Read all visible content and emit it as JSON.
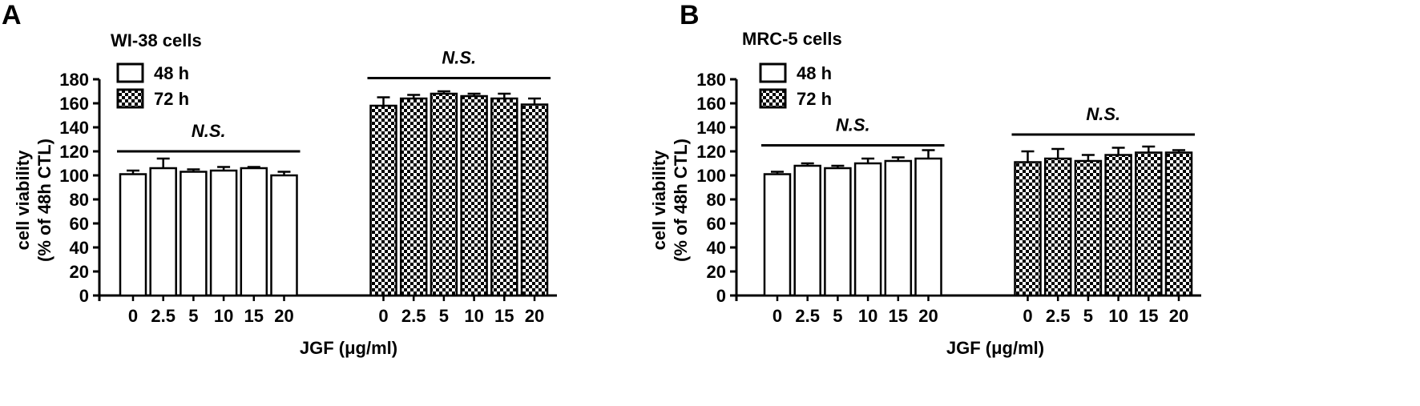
{
  "theme": {
    "ink": "#000000",
    "bar_48h_fill": "#ffffff",
    "bar_72h_pattern": "checkerboard"
  },
  "panels": [
    {
      "letter": "A",
      "title": "WI-38  cells",
      "ylabel_line1": "cell viability",
      "ylabel_line2": "(% of 48h CTL)",
      "xlabel": "JGF (μg/ml)",
      "legend": [
        "48 h",
        "72 h"
      ],
      "significance": [
        "N.S.",
        "N.S."
      ]
    },
    {
      "letter": "B",
      "title": "MRC-5  cells",
      "ylabel_line1": "cell viability",
      "ylabel_line2": "(% of 48h CTL)",
      "xlabel": "JGF (μg/ml)",
      "legend": [
        "48 h",
        "72 h"
      ],
      "significance": [
        "N.S.",
        "N.S."
      ]
    }
  ],
  "chart_data": [
    {
      "type": "bar",
      "title": "WI-38  cells",
      "xlabel": "JGF (μg/ml)",
      "ylabel": "cell viability (% of 48h CTL)",
      "ylim": [
        0,
        180
      ],
      "yticks": [
        0,
        20,
        40,
        60,
        80,
        100,
        120,
        140,
        160,
        180
      ],
      "categories": [
        "0",
        "2.5",
        "5",
        "10",
        "15",
        "20"
      ],
      "legend_position": "top-left",
      "series": [
        {
          "name": "48 h",
          "values": [
            101,
            106,
            103,
            104,
            106,
            100
          ],
          "errors": [
            3,
            8,
            2,
            3,
            1,
            3
          ]
        },
        {
          "name": "72 h",
          "values": [
            158,
            164,
            168,
            166,
            164,
            159
          ],
          "errors": [
            7,
            3,
            2,
            2,
            4,
            5
          ]
        }
      ],
      "annotations": [
        {
          "text": "N.S.",
          "over_series": "48 h",
          "level": 120
        },
        {
          "text": "N.S.",
          "over_series": "72 h",
          "level": 181
        }
      ]
    },
    {
      "type": "bar",
      "title": "MRC-5  cells",
      "xlabel": "JGF (μg/ml)",
      "ylabel": "cell viability (% of 48h CTL)",
      "ylim": [
        0,
        180
      ],
      "yticks": [
        0,
        20,
        40,
        60,
        80,
        100,
        120,
        140,
        160,
        180
      ],
      "categories": [
        "0",
        "2.5",
        "5",
        "10",
        "15",
        "20"
      ],
      "legend_position": "top-left",
      "series": [
        {
          "name": "48 h",
          "values": [
            101,
            108,
            106,
            110,
            112,
            114
          ],
          "errors": [
            2,
            2,
            2,
            4,
            3,
            7
          ]
        },
        {
          "name": "72 h",
          "values": [
            111,
            114,
            112,
            117,
            119,
            119
          ],
          "errors": [
            9,
            8,
            5,
            6,
            5,
            2
          ]
        }
      ],
      "annotations": [
        {
          "text": "N.S.",
          "over_series": "48 h",
          "level": 125
        },
        {
          "text": "N.S.",
          "over_series": "72 h",
          "level": 134
        }
      ]
    }
  ]
}
